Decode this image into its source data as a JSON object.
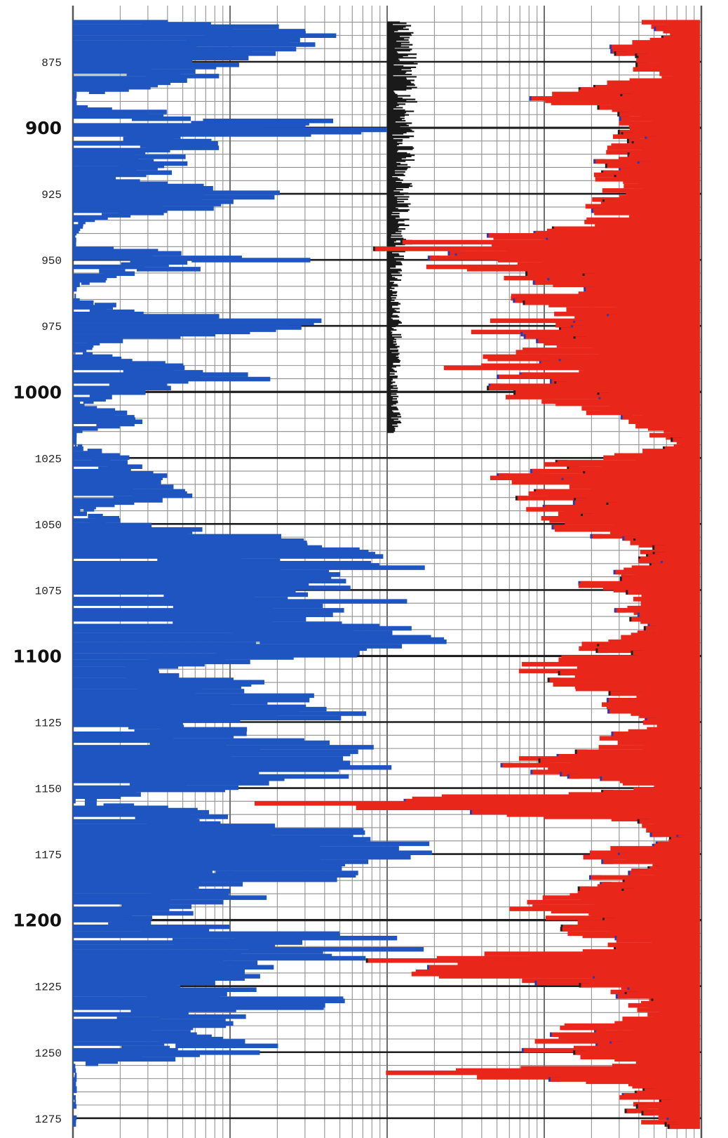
{
  "chart_data": {
    "type": "line",
    "title": "",
    "xlabel": "",
    "ylabel": "",
    "ylim": [
      860,
      1279
    ],
    "depth_axis": {
      "direction": "down",
      "minor_step": 5,
      "labeled_step": 25,
      "bold_step": 100,
      "tick_labels": [
        {
          "value": 875,
          "text": "875",
          "bold": false
        },
        {
          "value": 900,
          "text": "900",
          "bold": true
        },
        {
          "value": 925,
          "text": "925",
          "bold": false
        },
        {
          "value": 950,
          "text": "950",
          "bold": false
        },
        {
          "value": 975,
          "text": "975",
          "bold": false
        },
        {
          "value": 1000,
          "text": "1000",
          "bold": true
        },
        {
          "value": 1025,
          "text": "1025",
          "bold": false
        },
        {
          "value": 1050,
          "text": "1050",
          "bold": false
        },
        {
          "value": 1075,
          "text": "1075",
          "bold": false
        },
        {
          "value": 1100,
          "text": "1100",
          "bold": true
        },
        {
          "value": 1125,
          "text": "1125",
          "bold": false
        },
        {
          "value": 1150,
          "text": "1150",
          "bold": false
        },
        {
          "value": 1175,
          "text": "1175",
          "bold": false
        },
        {
          "value": 1200,
          "text": "1200",
          "bold": true
        },
        {
          "value": 1225,
          "text": "1225",
          "bold": false
        },
        {
          "value": 1250,
          "text": "1250",
          "bold": false
        },
        {
          "value": 1275,
          "text": "1275",
          "bold": false
        }
      ]
    },
    "grid": true,
    "log_scale_x": true,
    "x_decades": 4,
    "tracks": [
      {
        "name": "",
        "color": "#1f55c0",
        "baseline": "left",
        "decade_start": 0,
        "profile": [
          [
            860,
            1.1
          ],
          [
            865,
            1.5
          ],
          [
            870,
            1.2
          ],
          [
            875,
            0.9
          ],
          [
            880,
            0.8
          ],
          [
            885,
            0.6
          ],
          [
            887,
            0.02
          ],
          [
            892,
            0.02
          ],
          [
            895,
            0.8
          ],
          [
            900,
            1.9
          ],
          [
            905,
            0.9
          ],
          [
            910,
            0.7
          ],
          [
            915,
            0.8
          ],
          [
            920,
            0.3
          ],
          [
            925,
            1.2
          ],
          [
            930,
            0.8
          ],
          [
            935,
            0.1
          ],
          [
            940,
            0.02
          ],
          [
            945,
            0.02
          ],
          [
            950,
            1.3
          ],
          [
            955,
            0.4
          ],
          [
            960,
            0.02
          ],
          [
            965,
            0.02
          ],
          [
            970,
            0.5
          ],
          [
            975,
            1.8
          ],
          [
            980,
            0.3
          ],
          [
            985,
            0.02
          ],
          [
            990,
            0.6
          ],
          [
            995,
            1.1
          ],
          [
            1000,
            0.4
          ],
          [
            1005,
            0.02
          ],
          [
            1010,
            0.6
          ],
          [
            1015,
            0.02
          ],
          [
            1020,
            0.02
          ],
          [
            1025,
            0.3
          ],
          [
            1030,
            0.6
          ],
          [
            1035,
            0.5
          ],
          [
            1040,
            0.9
          ],
          [
            1045,
            0.02
          ],
          [
            1050,
            0.4
          ],
          [
            1055,
            1.2
          ],
          [
            1060,
            1.6
          ],
          [
            1065,
            2.0
          ],
          [
            1070,
            1.8
          ],
          [
            1075,
            1.4
          ],
          [
            1080,
            1.9
          ],
          [
            1085,
            2.0
          ],
          [
            1090,
            2.0
          ],
          [
            1095,
            1.9
          ],
          [
            1100,
            1.6
          ],
          [
            1105,
            0.4
          ],
          [
            1110,
            1.0
          ],
          [
            1115,
            1.4
          ],
          [
            1120,
            1.8
          ],
          [
            1125,
            1.2
          ],
          [
            1130,
            1.0
          ],
          [
            1135,
            1.6
          ],
          [
            1140,
            1.6
          ],
          [
            1145,
            1.8
          ],
          [
            1150,
            0.9
          ],
          [
            1155,
            0.02
          ],
          [
            1160,
            1.0
          ],
          [
            1165,
            1.7
          ],
          [
            1170,
            2.0
          ],
          [
            1175,
            1.9
          ],
          [
            1180,
            1.6
          ],
          [
            1185,
            1.4
          ],
          [
            1190,
            1.2
          ],
          [
            1195,
            0.9
          ],
          [
            1200,
            0.4
          ],
          [
            1205,
            1.6
          ],
          [
            1210,
            1.9
          ],
          [
            1215,
            1.5
          ],
          [
            1220,
            0.9
          ],
          [
            1225,
            1.2
          ],
          [
            1230,
            1.6
          ],
          [
            1235,
            1.2
          ],
          [
            1240,
            0.8
          ],
          [
            1245,
            0.9
          ],
          [
            1250,
            1.2
          ],
          [
            1255,
            0.02
          ],
          [
            1260,
            0.02
          ],
          [
            1265,
            0.02
          ],
          [
            1270,
            0.02
          ],
          [
            1279,
            0.02
          ]
        ]
      },
      {
        "name": "",
        "color": "#1a1a1a",
        "baseline": "left",
        "decade_start": 2,
        "profile": [
          [
            860,
            0.1
          ],
          [
            880,
            0.12
          ],
          [
            900,
            0.11
          ],
          [
            920,
            0.1
          ],
          [
            940,
            0.08
          ],
          [
            960,
            0.05
          ],
          [
            980,
            0.06
          ],
          [
            1000,
            0.04
          ],
          [
            1012,
            0.06
          ],
          [
            1016,
            0.02
          ]
        ]
      },
      {
        "name": "",
        "color": "#e8261a",
        "baseline": "right",
        "decade_start": 2,
        "profile": [
          [
            860,
            0.3
          ],
          [
            865,
            0.2
          ],
          [
            870,
            0.5
          ],
          [
            875,
            0.4
          ],
          [
            880,
            0.3
          ],
          [
            885,
            0.6
          ],
          [
            890,
            1.0
          ],
          [
            895,
            0.5
          ],
          [
            900,
            0.4
          ],
          [
            905,
            0.6
          ],
          [
            910,
            0.5
          ],
          [
            915,
            0.7
          ],
          [
            920,
            0.6
          ],
          [
            925,
            0.5
          ],
          [
            930,
            0.7
          ],
          [
            935,
            0.6
          ],
          [
            940,
            1.0
          ],
          [
            945,
            1.9
          ],
          [
            950,
            1.6
          ],
          [
            955,
            1.3
          ],
          [
            960,
            0.9
          ],
          [
            965,
            1.0
          ],
          [
            970,
            0.8
          ],
          [
            975,
            1.4
          ],
          [
            980,
            1.2
          ],
          [
            985,
            1.0
          ],
          [
            990,
            1.4
          ],
          [
            995,
            1.1
          ],
          [
            1000,
            1.2
          ],
          [
            1005,
            0.9
          ],
          [
            1010,
            0.4
          ],
          [
            1015,
            0.3
          ],
          [
            1020,
            0.2
          ],
          [
            1025,
            0.5
          ],
          [
            1030,
            1.3
          ],
          [
            1035,
            1.1
          ],
          [
            1040,
            1.0
          ],
          [
            1045,
            1.1
          ],
          [
            1050,
            1.0
          ],
          [
            1055,
            0.6
          ],
          [
            1060,
            0.3
          ],
          [
            1065,
            0.4
          ],
          [
            1070,
            0.6
          ],
          [
            1075,
            0.7
          ],
          [
            1080,
            0.5
          ],
          [
            1085,
            0.4
          ],
          [
            1090,
            0.3
          ],
          [
            1095,
            0.6
          ],
          [
            1100,
            0.7
          ],
          [
            1105,
            1.1
          ],
          [
            1110,
            0.9
          ],
          [
            1115,
            0.6
          ],
          [
            1120,
            0.5
          ],
          [
            1125,
            0.3
          ],
          [
            1130,
            0.5
          ],
          [
            1135,
            0.6
          ],
          [
            1140,
            1.1
          ],
          [
            1145,
            0.9
          ],
          [
            1150,
            0.3
          ],
          [
            1155,
            2.4
          ],
          [
            1158,
            2.3
          ],
          [
            1162,
            0.4
          ],
          [
            1165,
            0.3
          ],
          [
            1170,
            0.2
          ],
          [
            1175,
            0.8
          ],
          [
            1180,
            0.4
          ],
          [
            1185,
            0.6
          ],
          [
            1190,
            0.8
          ],
          [
            1195,
            1.2
          ],
          [
            1200,
            0.9
          ],
          [
            1205,
            0.7
          ],
          [
            1210,
            0.5
          ],
          [
            1215,
            1.8
          ],
          [
            1220,
            1.6
          ],
          [
            1225,
            0.6
          ],
          [
            1230,
            0.5
          ],
          [
            1235,
            0.4
          ],
          [
            1240,
            0.7
          ],
          [
            1245,
            0.9
          ],
          [
            1250,
            1.0
          ],
          [
            1255,
            0.6
          ],
          [
            1258,
            2.0
          ],
          [
            1262,
            0.5
          ],
          [
            1270,
            0.4
          ],
          [
            1279,
            0.3
          ]
        ]
      }
    ]
  }
}
